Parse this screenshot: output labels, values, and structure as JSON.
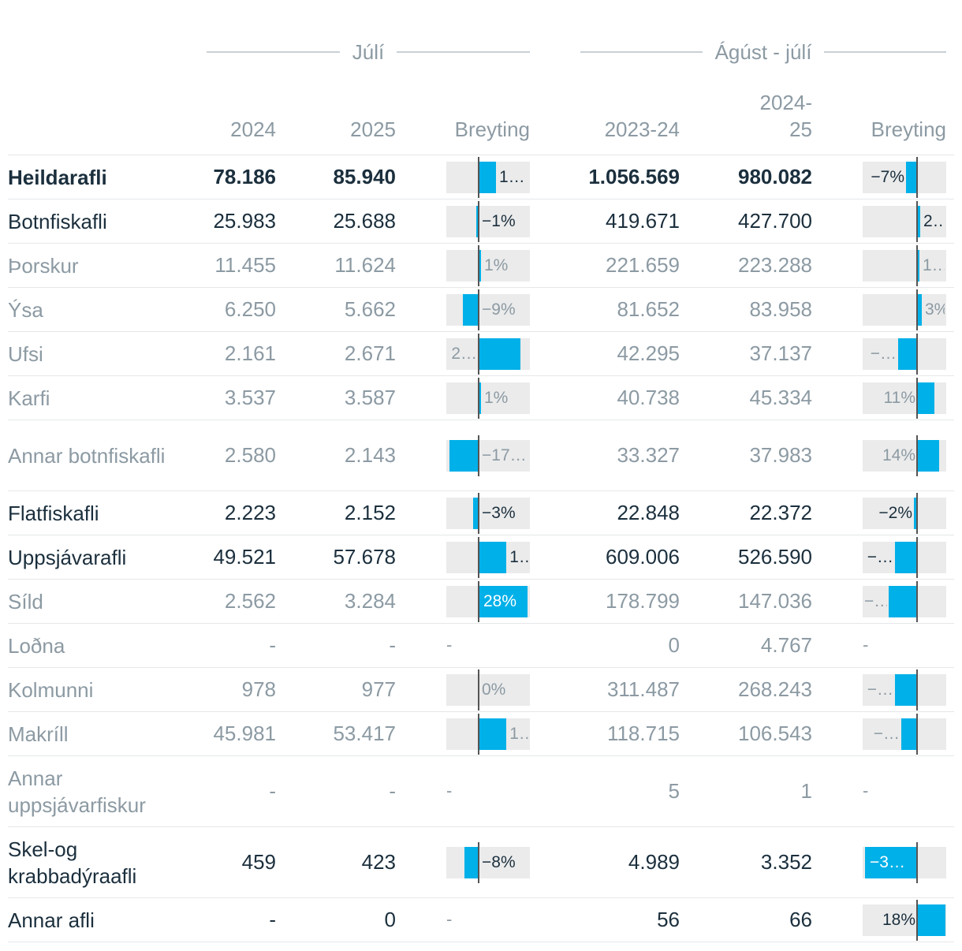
{
  "groups": [
    {
      "label": "Júlí"
    },
    {
      "label": "Ágúst - júlí"
    }
  ],
  "columns": {
    "y2024": "2024",
    "y2025": "2025",
    "change1": "Breyting",
    "y2324": "2023-24",
    "y2425": "2024-25",
    "change2": "Breyting"
  },
  "rows": [
    {
      "name": "Heildarafli",
      "level": "total",
      "v2024": "78.186",
      "v2025": "85.940",
      "c1": 10,
      "c1_label": "1…",
      "v2324": "1.056.569",
      "v2425": "980.082",
      "c2": -7,
      "c2_label": "−7%"
    },
    {
      "name": "Botnfiskafli",
      "level": "level1",
      "v2024": "25.983",
      "v2025": "25.688",
      "c1": -1,
      "c1_label": "−1%",
      "v2324": "419.671",
      "v2425": "427.700",
      "c2": 2,
      "c2_label": "2…"
    },
    {
      "name": "Þorskur",
      "level": "level2",
      "v2024": "11.455",
      "v2025": "11.624",
      "c1": 1,
      "c1_label": "1%",
      "v2324": "221.659",
      "v2425": "223.288",
      "c2": 1,
      "c2_label": "1…"
    },
    {
      "name": "Ýsa",
      "level": "level2",
      "v2024": "6.250",
      "v2025": "5.662",
      "c1": -9,
      "c1_label": "−9%",
      "v2324": "81.652",
      "v2425": "83.958",
      "c2": 3,
      "c2_label": "3%"
    },
    {
      "name": "Ufsi",
      "level": "level2",
      "v2024": "2.161",
      "v2025": "2.671",
      "c1": 24,
      "c1_label": "2…",
      "v2324": "42.295",
      "v2425": "37.137",
      "c2": -12,
      "c2_label": "−…"
    },
    {
      "name": "Karfi",
      "level": "level2",
      "v2024": "3.537",
      "v2025": "3.587",
      "c1": 1,
      "c1_label": "1%",
      "v2324": "40.738",
      "v2425": "45.334",
      "c2": 11,
      "c2_label": "11%"
    },
    {
      "name": "Annar botnfiskafli",
      "level": "level2",
      "v2024": "2.580",
      "v2025": "2.143",
      "c1": -17,
      "c1_label": "−17…",
      "v2324": "33.327",
      "v2425": "37.983",
      "c2": 14,
      "c2_label": "14%"
    },
    {
      "name": "Flatfiskafli",
      "level": "level1",
      "v2024": "2.223",
      "v2025": "2.152",
      "c1": -3,
      "c1_label": "−3%",
      "v2324": "22.848",
      "v2425": "22.372",
      "c2": -2,
      "c2_label": "−2%"
    },
    {
      "name": "Uppsjávarafli",
      "level": "level1",
      "v2024": "49.521",
      "v2025": "57.678",
      "c1": 16,
      "c1_label": "1…",
      "v2324": "609.006",
      "v2425": "526.590",
      "c2": -14,
      "c2_label": "−…"
    },
    {
      "name": "Síld",
      "level": "level2",
      "v2024": "2.562",
      "v2025": "3.284",
      "c1": 28,
      "c1_label": "28%",
      "v2324": "178.799",
      "v2425": "147.036",
      "c2": -18,
      "c2_label": "−…"
    },
    {
      "name": "Loðna",
      "level": "level2",
      "v2024": "-",
      "v2025": "-",
      "c1": null,
      "c1_label": "-",
      "v2324": "0",
      "v2425": "4.767",
      "c2": null,
      "c2_label": "-"
    },
    {
      "name": "Kolmunni",
      "level": "level2",
      "v2024": "978",
      "v2025": "977",
      "c1": 0,
      "c1_label": "0%",
      "v2324": "311.487",
      "v2425": "268.243",
      "c2": -14,
      "c2_label": "−…"
    },
    {
      "name": "Makríll",
      "level": "level2",
      "v2024": "45.981",
      "v2025": "53.417",
      "c1": 16,
      "c1_label": "1…",
      "v2324": "118.715",
      "v2425": "106.543",
      "c2": -10,
      "c2_label": "−…"
    },
    {
      "name": "Annar uppsjávarfiskur",
      "level": "level2",
      "v2024": "-",
      "v2025": "-",
      "c1": null,
      "c1_label": "-",
      "v2324": "5",
      "v2425": "1",
      "c2": null,
      "c2_label": "-"
    },
    {
      "name": "Skel-og krabbadýraafli",
      "level": "level1",
      "v2024": "459",
      "v2025": "423",
      "c1": -8,
      "c1_label": "−8%",
      "v2324": "4.989",
      "v2425": "3.352",
      "c2": -33,
      "c2_label": "−3…"
    },
    {
      "name": "Annar afli",
      "level": "level1",
      "v2024": "-",
      "v2025": "0",
      "c1": null,
      "c1_label": "-",
      "v2324": "56",
      "v2425": "66",
      "c2": 18,
      "c2_label": "18%"
    }
  ],
  "colors": {
    "bar": "#00b0e8",
    "track": "#ebebeb",
    "text_dark": "#1b2f3d",
    "text_muted": "#8c9aa3"
  }
}
